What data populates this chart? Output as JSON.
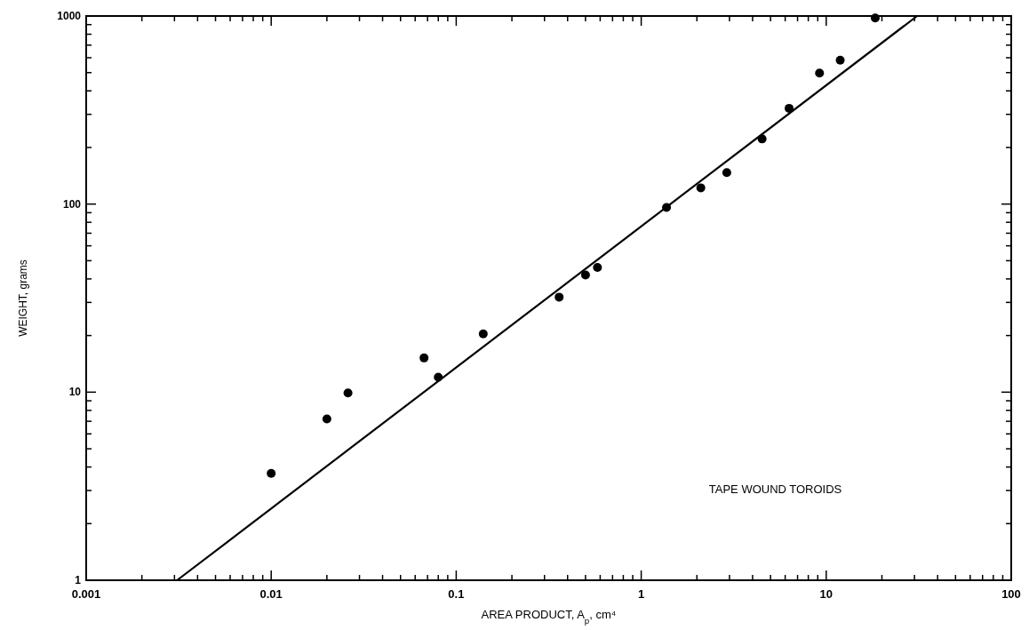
{
  "chart_data": {
    "type": "scatter",
    "xlabel": "AREA PRODUCT, A$_{p}$, cm⁴",
    "ylabel": "WEIGHT, grams",
    "log": "xy",
    "marker": "circle",
    "grid": false,
    "annotations": [
      "TAPE WOUND TOROIDS"
    ],
    "xlim": [
      0.001,
      100
    ],
    "ylim": [
      1,
      1000
    ],
    "xticks": [
      0.001,
      {
        "value": 0.002,
        "label": null
      },
      {
        "value": 0.003,
        "label": null
      },
      {
        "value": 0.004,
        "label": null
      },
      {
        "value": 0.005,
        "label": null
      },
      {
        "value": 0.006,
        "label": null
      },
      {
        "value": 0.007,
        "label": null
      },
      {
        "value": 0.008,
        "label": null
      },
      {
        "value": 0.009,
        "label": null
      },
      0.01,
      {
        "value": 0.02,
        "label": null
      },
      {
        "value": 0.03,
        "label": null
      },
      {
        "value": 0.04,
        "label": null
      },
      {
        "value": 0.05,
        "label": null
      },
      {
        "value": 0.06,
        "label": null
      },
      {
        "value": 0.07,
        "label": null
      },
      {
        "value": 0.08,
        "label": null
      },
      {
        "value": 0.09,
        "label": null
      },
      0.1,
      {
        "value": 0.2,
        "label": null
      },
      {
        "value": 0.3,
        "label": null
      },
      {
        "value": 0.4,
        "label": null
      },
      {
        "value": 0.5,
        "label": null
      },
      {
        "value": 0.6,
        "label": null
      },
      {
        "value": 0.7,
        "label": null
      },
      {
        "value": 0.8,
        "label": null
      },
      {
        "value": 0.9,
        "label": null
      },
      1,
      {
        "value": 2,
        "label": null
      },
      {
        "value": 3,
        "label": null
      },
      {
        "value": 4,
        "label": null
      },
      {
        "value": 5,
        "label": null
      },
      {
        "value": 6,
        "label": null
      },
      {
        "value": 7,
        "label": null
      },
      {
        "value": 8,
        "label": null
      },
      {
        "value": 9,
        "label": null
      },
      10,
      {
        "value": 20,
        "label": null
      },
      {
        "value": 30,
        "label": null
      },
      {
        "value": 40,
        "label": null
      },
      {
        "value": 50,
        "label": null
      },
      {
        "value": 60,
        "label": null
      },
      {
        "value": 70,
        "label": null
      },
      {
        "value": 80,
        "label": null
      },
      {
        "value": 90,
        "label": null
      },
      100
    ],
    "yticks": [
      1,
      {
        "value": 2,
        "label": null
      },
      {
        "value": 3,
        "label": null
      },
      {
        "value": 4,
        "label": null
      },
      {
        "value": 5,
        "label": null
      },
      {
        "value": 6,
        "label": null
      },
      {
        "value": 7,
        "label": null
      },
      {
        "value": 8,
        "label": null
      },
      {
        "value": 9,
        "label": null
      },
      10,
      {
        "value": 20,
        "label": null
      },
      {
        "value": 30,
        "label": null
      },
      {
        "value": 40,
        "label": null
      },
      {
        "value": 50,
        "label": null
      },
      {
        "value": 60,
        "label": null
      },
      {
        "value": 70,
        "label": null
      },
      {
        "value": 80,
        "label": null
      },
      {
        "value": 90,
        "label": null
      },
      100,
      {
        "value": 200,
        "label": null
      },
      {
        "value": 300,
        "label": null
      },
      {
        "value": 400,
        "label": null
      },
      {
        "value": 500,
        "label": null
      },
      {
        "value": 600,
        "label": null
      },
      {
        "value": 700,
        "label": null
      },
      {
        "value": 800,
        "label": null
      },
      {
        "value": 900,
        "label": null
      },
      1000
    ],
    "series": [
      {
        "color": "#000000",
        "x": [
          0.01,
          0.02,
          0.026,
          0.067,
          0.08,
          0.14,
          0.36,
          0.5,
          0.58,
          1.37,
          2.1,
          2.9,
          4.5,
          6.3,
          9.2,
          11.9,
          18.4
        ],
        "values": [
          3.7,
          7.2,
          9.9,
          15.2,
          12,
          20.4,
          32,
          42,
          46,
          96,
          122,
          147,
          222,
          323,
          497,
          582,
          975
        ]
      },
      {
        "type": "line",
        "color": "#000000",
        "marker": "none",
        "x": [
          0.0031,
          31
        ],
        "values": [
          1,
          1000
        ]
      }
    ]
  }
}
